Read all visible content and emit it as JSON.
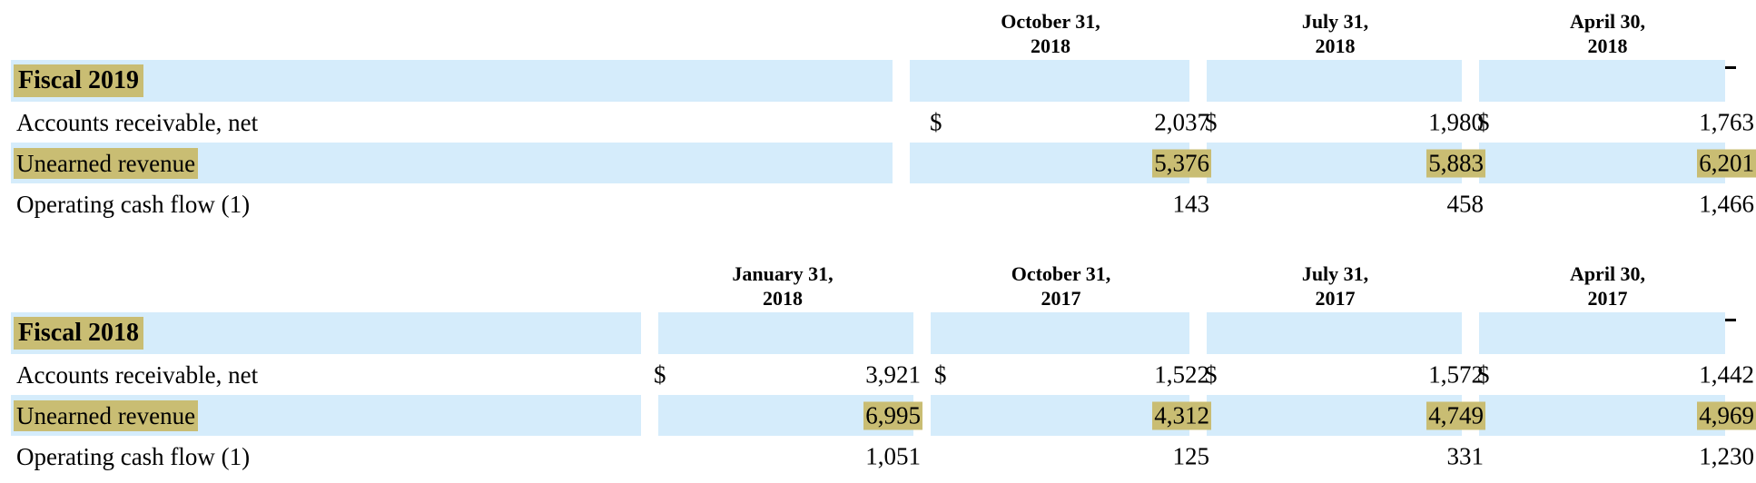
{
  "fiscal2019": {
    "title": "Fiscal 2019",
    "columns": [
      {
        "line1": "October 31,",
        "line2": "2018"
      },
      {
        "line1": "July 31,",
        "line2": "2018"
      },
      {
        "line1": "April 30,",
        "line2": "2018"
      }
    ],
    "rows": [
      {
        "label": "Accounts receivable, net",
        "currency": "$",
        "values": [
          "2,037",
          "1,980",
          "1,763"
        ]
      },
      {
        "label": "Unearned revenue",
        "values": [
          "5,376",
          "5,883",
          "6,201"
        ]
      },
      {
        "label": "Operating cash flow (1)",
        "values": [
          "143",
          "458",
          "1,466"
        ]
      }
    ]
  },
  "fiscal2018": {
    "title": "Fiscal 2018",
    "columns": [
      {
        "line1": "January 31,",
        "line2": "2018"
      },
      {
        "line1": "October 31,",
        "line2": "2017"
      },
      {
        "line1": "July 31,",
        "line2": "2017"
      },
      {
        "line1": "April 30,",
        "line2": "2017"
      }
    ],
    "rows": [
      {
        "label": "Accounts receivable, net",
        "currency": "$",
        "values": [
          "3,921",
          "1,522",
          "1,572",
          "1,442"
        ]
      },
      {
        "label": "Unearned revenue",
        "values": [
          "6,995",
          "4,312",
          "4,749",
          "4,969"
        ]
      },
      {
        "label": "Operating cash flow (1)",
        "values": [
          "1,051",
          "125",
          "331",
          "1,230"
        ]
      }
    ]
  },
  "colors": {
    "highlight": "#c9bd73",
    "band": "#d5ecfb",
    "rule": "#000000"
  }
}
